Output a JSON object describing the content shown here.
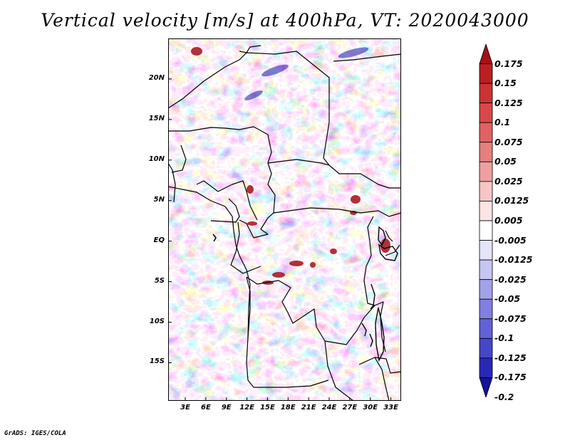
{
  "title": "Vertical velocity [m/s] at 400hPa, VT: 2020043000",
  "credit": "GrADS: IGES/COLA",
  "map": {
    "lat_labels": [
      "20N",
      "15N",
      "10N",
      "5N",
      "EQ",
      "5S",
      "10S",
      "15S"
    ],
    "lat_values": [
      20,
      15,
      10,
      5,
      0,
      -5,
      -10,
      -15
    ],
    "lon_labels": [
      "3E",
      "6E",
      "9E",
      "12E",
      "15E",
      "18E",
      "21E",
      "24E",
      "27E",
      "30E",
      "33E"
    ],
    "lon_values": [
      3,
      6,
      9,
      12,
      15,
      18,
      21,
      24,
      27,
      30,
      33
    ],
    "lon_range": [
      0.5,
      34.5
    ],
    "lat_range": [
      -19.7,
      25
    ]
  },
  "colorbar": {
    "labels": [
      "0.175",
      "0.15",
      "0.125",
      "0.1",
      "0.075",
      "0.05",
      "0.025",
      "0.0125",
      "0.005",
      "-0.005",
      "-0.0125",
      "-0.025",
      "-0.05",
      "-0.075",
      "-0.1",
      "-0.125",
      "-0.175",
      "-0.2"
    ],
    "colors": [
      "#a50f15",
      "#bb1f22",
      "#cc3233",
      "#d94848",
      "#e06262",
      "#e77f7f",
      "#ef9f9f",
      "#f6c6c6",
      "#fbe4e4",
      "#ffffff",
      "#e4e4fb",
      "#c6c6f5",
      "#a2a2ec",
      "#8080e0",
      "#6262d6",
      "#4646c8",
      "#2828b4",
      "#141496"
    ]
  }
}
